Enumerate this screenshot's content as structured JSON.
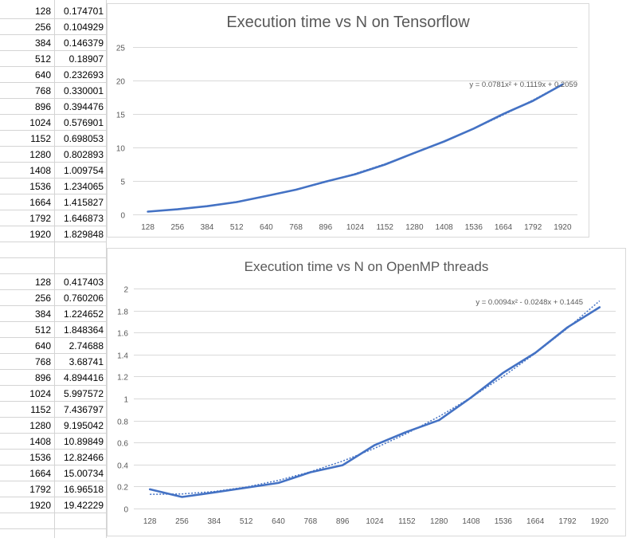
{
  "sheet": {
    "table1": [
      {
        "n": "128",
        "t": "0.174701"
      },
      {
        "n": "256",
        "t": "0.104929"
      },
      {
        "n": "384",
        "t": "0.146379"
      },
      {
        "n": "512",
        "t": "0.18907"
      },
      {
        "n": "640",
        "t": "0.232693"
      },
      {
        "n": "768",
        "t": "0.330001"
      },
      {
        "n": "896",
        "t": "0.394476"
      },
      {
        "n": "1024",
        "t": "0.576901"
      },
      {
        "n": "1152",
        "t": "0.698053"
      },
      {
        "n": "1280",
        "t": "0.802893"
      },
      {
        "n": "1408",
        "t": "1.009754"
      },
      {
        "n": "1536",
        "t": "1.234065"
      },
      {
        "n": "1664",
        "t": "1.415827"
      },
      {
        "n": "1792",
        "t": "1.646873"
      },
      {
        "n": "1920",
        "t": "1.829848"
      }
    ],
    "table2": [
      {
        "n": "128",
        "t": "0.417403"
      },
      {
        "n": "256",
        "t": "0.760206"
      },
      {
        "n": "384",
        "t": "1.224652"
      },
      {
        "n": "512",
        "t": "1.848364"
      },
      {
        "n": "640",
        "t": "2.74688"
      },
      {
        "n": "768",
        "t": "3.68741"
      },
      {
        "n": "896",
        "t": "4.894416"
      },
      {
        "n": "1024",
        "t": "5.997572"
      },
      {
        "n": "1152",
        "t": "7.436797"
      },
      {
        "n": "1280",
        "t": "9.195042"
      },
      {
        "n": "1408",
        "t": "10.89849"
      },
      {
        "n": "1536",
        "t": "12.82466"
      },
      {
        "n": "1664",
        "t": "15.00734"
      },
      {
        "n": "1792",
        "t": "16.96518"
      },
      {
        "n": "1920",
        "t": "19.42229"
      }
    ]
  },
  "colors": {
    "series": "#4472c4",
    "gridline": "#d9d9d9",
    "axis_text": "#595959",
    "cell_border": "#d4d4d4"
  },
  "chart_data": [
    {
      "type": "line",
      "title": "Execution time vs N on Tensorflow",
      "categories": [
        "128",
        "256",
        "384",
        "512",
        "640",
        "768",
        "896",
        "1024",
        "1152",
        "1280",
        "1408",
        "1536",
        "1664",
        "1792",
        "1920"
      ],
      "series": [
        {
          "values": [
            0.417403,
            0.760206,
            1.224652,
            1.848364,
            2.74688,
            3.68741,
            4.894416,
            5.997572,
            7.436797,
            9.195042,
            10.89849,
            12.82466,
            15.00734,
            16.96518,
            19.42229
          ]
        }
      ],
      "trendline": {
        "type": "polynomial",
        "order": 2,
        "label": "y = 0.0781x² + 0.1119x + 0.2059",
        "coefficients": [
          0.0781,
          0.1119,
          0.2059
        ]
      },
      "yticks": [
        "0",
        "5",
        "10",
        "15",
        "20",
        "25"
      ],
      "ylim": [
        0,
        25
      ],
      "xlabel": "",
      "ylabel": "",
      "grid": true,
      "legend": "none"
    },
    {
      "type": "line",
      "title": "Execution time vs N on OpenMP threads",
      "categories": [
        "128",
        "256",
        "384",
        "512",
        "640",
        "768",
        "896",
        "1024",
        "1152",
        "1280",
        "1408",
        "1536",
        "1664",
        "1792",
        "1920"
      ],
      "series": [
        {
          "values": [
            0.174701,
            0.104929,
            0.146379,
            0.18907,
            0.232693,
            0.330001,
            0.394476,
            0.576901,
            0.698053,
            0.802893,
            1.009754,
            1.234065,
            1.415827,
            1.646873,
            1.829848
          ]
        }
      ],
      "trendline": {
        "type": "polynomial",
        "order": 2,
        "label": "y = 0.0094x² - 0.0248x + 0.1445",
        "coefficients": [
          0.0094,
          -0.0248,
          0.1445
        ]
      },
      "yticks": [
        "0",
        "0.2",
        "0.4",
        "0.6",
        "0.8",
        "1",
        "1.2",
        "1.4",
        "1.6",
        "1.8",
        "2"
      ],
      "ylim": [
        0,
        2
      ],
      "xlabel": "",
      "ylabel": "",
      "grid": true,
      "legend": "none"
    }
  ]
}
